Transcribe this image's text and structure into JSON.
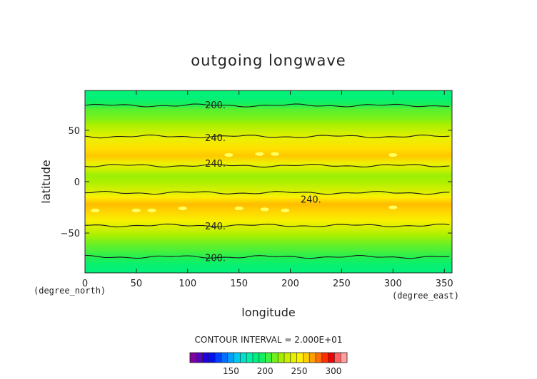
{
  "chart_data": {
    "type": "heatmap",
    "title": "outgoing longwave",
    "xlabel": "longitude",
    "ylabel": "latitude",
    "x_unit": "(degree_east)",
    "y_unit": "(degree_north)",
    "xlim": [
      0,
      357.5
    ],
    "ylim": [
      -88.75,
      88.75
    ],
    "xticks": [
      0,
      50,
      100,
      150,
      200,
      250,
      300,
      350
    ],
    "yticks": [
      -50,
      0,
      50
    ],
    "contour_interval_text": "CONTOUR INTERVAL = 2.000E+01",
    "contour_levels": [
      200,
      240
    ],
    "contour_labels": [
      {
        "text": "200.",
        "lon": 127,
        "lat": 75
      },
      {
        "text": "240.",
        "lon": 127,
        "lat": 43
      },
      {
        "text": "240.",
        "lon": 127,
        "lat": 18
      },
      {
        "text": "240.",
        "lon": 220,
        "lat": -17
      },
      {
        "text": "240.",
        "lon": 127,
        "lat": -43
      },
      {
        "text": "200.",
        "lon": 127,
        "lat": -74
      }
    ],
    "zonal_profile": [
      {
        "lat": 88.75,
        "value": 190
      },
      {
        "lat": 82,
        "value": 188
      },
      {
        "lat": 75,
        "value": 198
      },
      {
        "lat": 70,
        "value": 210
      },
      {
        "lat": 62,
        "value": 216
      },
      {
        "lat": 56,
        "value": 225
      },
      {
        "lat": 48,
        "value": 234
      },
      {
        "lat": 42,
        "value": 243
      },
      {
        "lat": 32,
        "value": 256
      },
      {
        "lat": 25,
        "value": 262
      },
      {
        "lat": 18,
        "value": 244
      },
      {
        "lat": 12,
        "value": 234
      },
      {
        "lat": 6,
        "value": 222
      },
      {
        "lat": 0,
        "value": 226
      },
      {
        "lat": -5,
        "value": 232
      },
      {
        "lat": -10,
        "value": 238
      },
      {
        "lat": -15,
        "value": 250
      },
      {
        "lat": -22,
        "value": 264
      },
      {
        "lat": -30,
        "value": 258
      },
      {
        "lat": -38,
        "value": 248
      },
      {
        "lat": -45,
        "value": 236
      },
      {
        "lat": -52,
        "value": 226
      },
      {
        "lat": -60,
        "value": 214
      },
      {
        "lat": -68,
        "value": 206
      },
      {
        "lat": -75,
        "value": 198
      },
      {
        "lat": -82,
        "value": 190
      },
      {
        "lat": -88.75,
        "value": 188
      }
    ],
    "hotspots": [
      {
        "lon": 140,
        "lat": 26
      },
      {
        "lon": 170,
        "lat": 27
      },
      {
        "lon": 185,
        "lat": 27
      },
      {
        "lon": 300,
        "lat": 26
      },
      {
        "lon": 10,
        "lat": -28
      },
      {
        "lon": 50,
        "lat": -28
      },
      {
        "lon": 65,
        "lat": -28
      },
      {
        "lon": 95,
        "lat": -26
      },
      {
        "lon": 150,
        "lat": -26
      },
      {
        "lon": 175,
        "lat": -27
      },
      {
        "lon": 195,
        "lat": -28
      },
      {
        "lon": 300,
        "lat": -25
      }
    ],
    "colorbar": {
      "tick_labels": [
        150,
        200,
        250,
        300
      ],
      "value_range": [
        90,
        320
      ],
      "colors": [
        "#8000a0",
        "#5a00c0",
        "#2000e0",
        "#0010f0",
        "#0040ff",
        "#0070ff",
        "#00a0ff",
        "#00c8f0",
        "#00e0d0",
        "#00f0a8",
        "#00f080",
        "#10f060",
        "#40f040",
        "#70f020",
        "#a0f000",
        "#c8f000",
        "#e8f000",
        "#fff000",
        "#ffd000",
        "#ffa000",
        "#ff7000",
        "#ff3000",
        "#f00000",
        "#ff6060",
        "#ffa0a0"
      ]
    }
  }
}
